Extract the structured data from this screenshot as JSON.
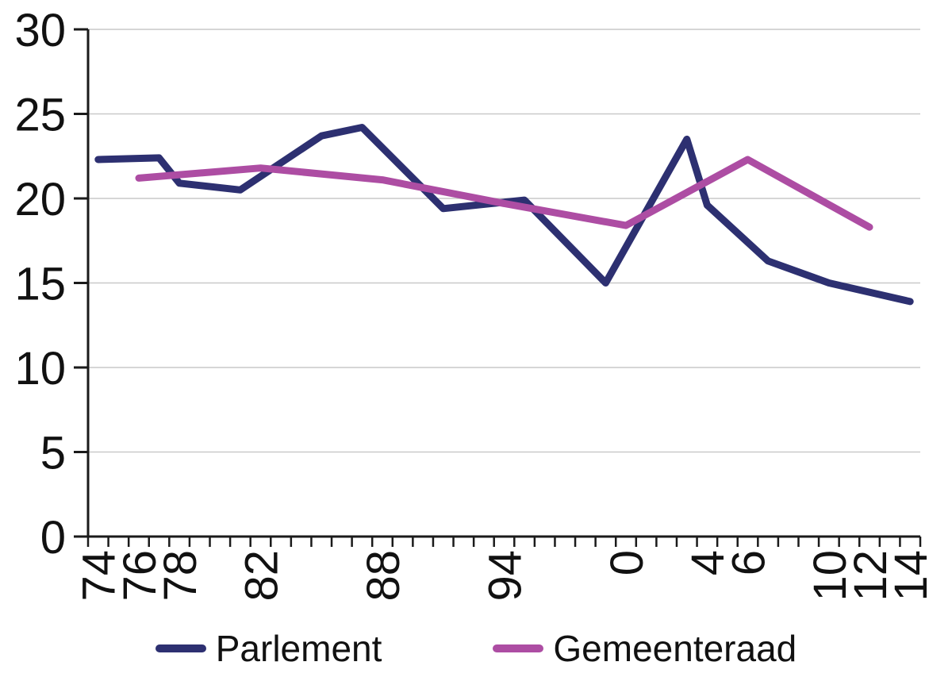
{
  "chart_data": {
    "type": "line",
    "title": "",
    "xlabel": "",
    "ylabel": "",
    "ylim": [
      0,
      30
    ],
    "y_ticks": [
      0,
      5,
      10,
      15,
      20,
      25,
      30
    ],
    "x_axis": {
      "start_year": 1974,
      "end_year_boundary": 2015,
      "tick_every_years": 1
    },
    "x_tick_labels": [
      {
        "year": 1974,
        "label": "74"
      },
      {
        "year": 1976,
        "label": "76"
      },
      {
        "year": 1978,
        "label": "78"
      },
      {
        "year": 1982,
        "label": "82"
      },
      {
        "year": 1988,
        "label": "88"
      },
      {
        "year": 1994,
        "label": "94"
      },
      {
        "year": 2000,
        "label": "0"
      },
      {
        "year": 2004,
        "label": "4"
      },
      {
        "year": 2006,
        "label": "6"
      },
      {
        "year": 2010,
        "label": "10"
      },
      {
        "year": 2012,
        "label": "12"
      },
      {
        "year": 2014,
        "label": "14"
      }
    ],
    "grid": "horizontal",
    "grid_color": "#C9C9C9",
    "axis_color": "#1A1A1A",
    "text_color": "#111111",
    "legend_position": "bottom",
    "series": [
      {
        "name": "Parlement",
        "color": "#2D3071",
        "points": [
          [
            1974,
            22.3
          ],
          [
            1977,
            22.4
          ],
          [
            1978,
            20.9
          ],
          [
            1981,
            20.5
          ],
          [
            1985,
            23.7
          ],
          [
            1987,
            24.2
          ],
          [
            1991,
            19.4
          ],
          [
            1995,
            19.9
          ],
          [
            1999,
            15.0
          ],
          [
            2003,
            23.5
          ],
          [
            2004,
            19.6
          ],
          [
            2007,
            16.3
          ],
          [
            2010,
            15.0
          ],
          [
            2014,
            13.9
          ]
        ]
      },
      {
        "name": "Gemeenteraad",
        "color": "#AD4DA3",
        "points": [
          [
            1976,
            21.2
          ],
          [
            1982,
            21.8
          ],
          [
            1988,
            21.1
          ],
          [
            1994,
            19.7
          ],
          [
            2000,
            18.4
          ],
          [
            2006,
            22.3
          ],
          [
            2012,
            18.3
          ]
        ]
      }
    ]
  }
}
